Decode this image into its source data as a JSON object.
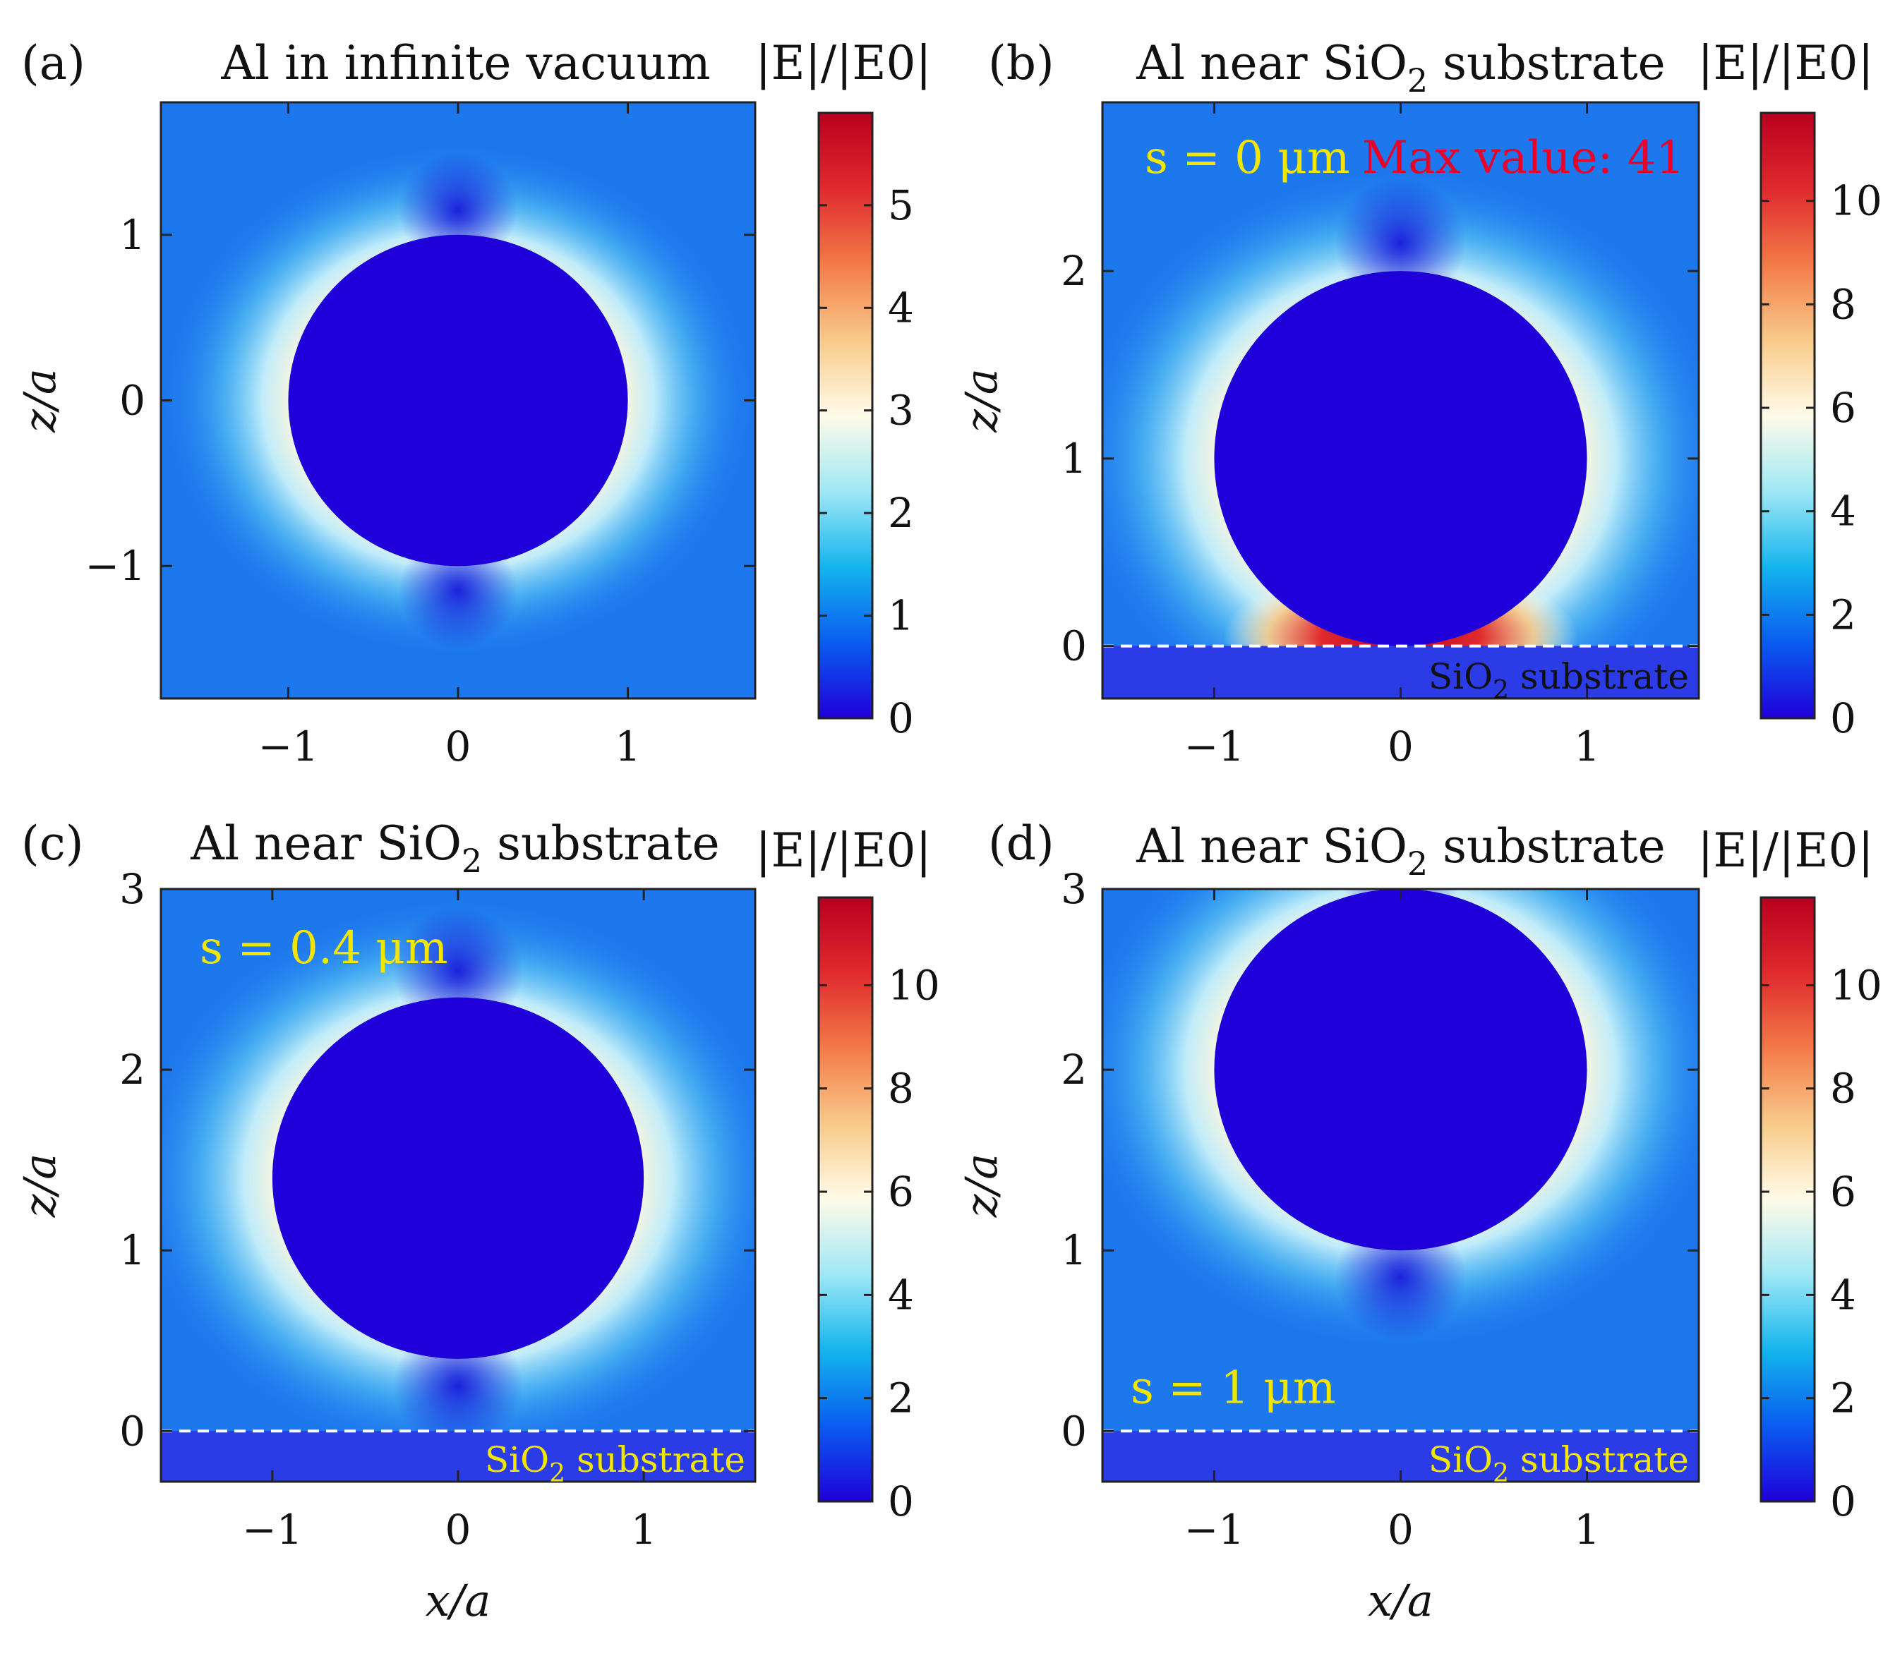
{
  "chart_data": [
    {
      "type": "heatmap",
      "panel": "(a)",
      "title": "Al in infinite vacuum",
      "colorbar_label": "|E|/|E0|",
      "colorbar_ticks": [
        "0",
        "1",
        "2",
        "3",
        "4",
        "5"
      ],
      "colorbar_range": [
        0,
        5.9
      ],
      "xlabel": "",
      "ylabel": "z/a",
      "xlim": [
        -1.75,
        1.75
      ],
      "ylim": [
        -1.8,
        1.8
      ],
      "xticks": [
        "−1",
        "0",
        "1"
      ],
      "xtick_values": [
        -1,
        0,
        1
      ],
      "yticks": [
        "−1",
        "0",
        "1"
      ],
      "ytick_values": [
        -1,
        0,
        1
      ],
      "particle_center_z": 0,
      "particle_radius": 1,
      "substrate": false
    },
    {
      "type": "heatmap",
      "panel": "(b)",
      "title": "Al near SiO",
      "title_sub": "2",
      "title_rest": "substrate",
      "colorbar_label": "|E|/|E0|",
      "colorbar_ticks": [
        "0",
        "2",
        "4",
        "6",
        "8",
        "10"
      ],
      "colorbar_range": [
        0,
        11.7
      ],
      "xlabel": "",
      "ylabel": "z/a",
      "xlim": [
        -1.6,
        1.6
      ],
      "ylim": [
        -0.28,
        2.9
      ],
      "xticks": [
        "−1",
        "0",
        "1"
      ],
      "xtick_values": [
        -1,
        0,
        1
      ],
      "yticks": [
        "0",
        "1",
        "2"
      ],
      "ytick_values": [
        0,
        1,
        2
      ],
      "particle_center_z": 1,
      "particle_radius": 1,
      "substrate": true,
      "substrate_label": "SiO",
      "substrate_sub": "2",
      "substrate_rest": "substrate",
      "annotation": "s = 0 μm",
      "max_value_label": "Max value: 41",
      "colors": {
        "annotation": "#f2e600",
        "max_value": "#e8002a",
        "substrate_label_color": "#111111"
      }
    },
    {
      "type": "heatmap",
      "panel": "(c)",
      "title": "Al near SiO",
      "title_sub": "2",
      "title_rest": "substrate",
      "colorbar_label": "|E|/|E0|",
      "colorbar_ticks": [
        "0",
        "2",
        "4",
        "6",
        "8",
        "10"
      ],
      "colorbar_range": [
        0,
        11.7
      ],
      "xlabel": "x/a",
      "ylabel": "z/a",
      "xlim": [
        -1.6,
        1.6
      ],
      "ylim": [
        -0.28,
        3
      ],
      "xticks": [
        "−1",
        "0",
        "1"
      ],
      "xtick_values": [
        -1,
        0,
        1
      ],
      "yticks": [
        "0",
        "1",
        "2",
        "3"
      ],
      "ytick_values": [
        0,
        1,
        2,
        3
      ],
      "particle_center_z": 1.4,
      "particle_radius": 1,
      "substrate": true,
      "substrate_label": "SiO",
      "substrate_sub": "2",
      "substrate_rest": "substrate",
      "annotation": "s = 0.4 μm",
      "colors": {
        "annotation": "#f2e600",
        "substrate_label_color": "#f2e600"
      }
    },
    {
      "type": "heatmap",
      "panel": "(d)",
      "title": "Al near SiO",
      "title_sub": "2",
      "title_rest": "substrate",
      "colorbar_label": "|E|/|E0|",
      "colorbar_ticks": [
        "0",
        "2",
        "4",
        "6",
        "8",
        "10"
      ],
      "colorbar_range": [
        0,
        11.7
      ],
      "xlabel": "x/a",
      "ylabel": "z/a",
      "xlim": [
        -1.6,
        1.6
      ],
      "ylim": [
        -0.28,
        3
      ],
      "xticks": [
        "−1",
        "0",
        "1"
      ],
      "xtick_values": [
        -1,
        0,
        1
      ],
      "yticks": [
        "0",
        "1",
        "2",
        "3"
      ],
      "ytick_values": [
        0,
        1,
        2,
        3
      ],
      "particle_center_z": 2,
      "particle_radius": 1,
      "substrate": true,
      "substrate_label": "SiO",
      "substrate_sub": "2",
      "substrate_rest": "substrate",
      "annotation": "s = 1 μm",
      "colors": {
        "annotation": "#f2e600",
        "substrate_label_color": "#f2e600"
      }
    }
  ],
  "colormap": [
    "#1f00d8",
    "#0a5cf0",
    "#14b4ee",
    "#9fe8f6",
    "#fffbe8",
    "#f8ca8a",
    "#f37a48",
    "#e02a2e",
    "#b8001e"
  ],
  "colors": {
    "field_background": "#1d78ee",
    "particle": "#1f00d8",
    "substrate": "#2b3be6",
    "glow": "#fff6dc"
  }
}
